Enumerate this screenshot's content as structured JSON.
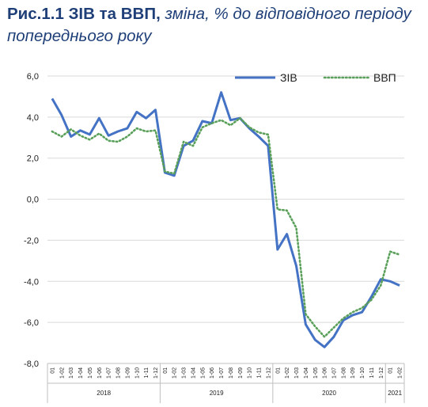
{
  "title": {
    "bold": "Рис.1.1 ЗІВ та ВВП,",
    "rest": " зміна, % до відповідного періоду попереднього року"
  },
  "colors": {
    "ziv": "#4472c4",
    "vvp": "#5aa05a",
    "grid": "#d9d9d9"
  },
  "chart_data": {
    "type": "line",
    "title": "Рис.1.1 ЗІВ та ВВП, зміна, % до відповідного періоду попереднього року",
    "ylim": [
      -8,
      6
    ],
    "yticks": [
      "6,0",
      "4,0",
      "2,0",
      "0,0",
      "-2,0",
      "-4,0",
      "-6,0",
      "-8,0"
    ],
    "grid": "horizontal",
    "legend": "top-right",
    "x": [
      "01",
      "1-02",
      "1-03",
      "1-04",
      "1-05",
      "1-06",
      "1-07",
      "1-08",
      "1-09",
      "1-10",
      "1-11",
      "1-12",
      "01",
      "1-02",
      "1-03",
      "1-04",
      "1-05",
      "1-06",
      "1-07",
      "1-08",
      "1-09",
      "1-10",
      "1-11",
      "1-12",
      "01",
      "1-02",
      "1-03",
      "1-04",
      "1-05",
      "1-06",
      "1-07",
      "1-08",
      "1-09",
      "1-10",
      "1-11",
      "1-12",
      "01",
      "1-02"
    ],
    "years": [
      {
        "label": "2018",
        "start": 0,
        "end": 11
      },
      {
        "label": "2019",
        "start": 12,
        "end": 23
      },
      {
        "label": "2020",
        "start": 24,
        "end": 35
      },
      {
        "label": "2021",
        "start": 36,
        "end": 37
      }
    ],
    "series": [
      {
        "name": "ЗІВ",
        "style": "solid",
        "values": [
          4.9,
          4.1,
          3.05,
          3.35,
          3.15,
          3.95,
          3.1,
          3.3,
          3.45,
          4.25,
          3.95,
          4.35,
          1.3,
          1.15,
          2.6,
          2.85,
          3.8,
          3.7,
          5.2,
          3.85,
          3.95,
          3.45,
          3.05,
          2.6,
          -2.45,
          -1.7,
          -3.25,
          -6.1,
          -6.85,
          -7.2,
          -6.7,
          -5.9,
          -5.65,
          -5.5,
          -4.75,
          -3.9,
          -4.0,
          -4.2
        ]
      },
      {
        "name": "ВВП",
        "style": "dotted",
        "values": [
          3.3,
          3.05,
          3.4,
          3.1,
          2.9,
          3.2,
          2.85,
          2.8,
          3.05,
          3.45,
          3.3,
          3.35,
          1.35,
          1.25,
          2.8,
          2.6,
          3.5,
          3.7,
          3.85,
          3.6,
          3.95,
          3.5,
          3.25,
          3.15,
          -0.5,
          -0.55,
          -1.4,
          -5.6,
          -6.2,
          -6.7,
          -6.25,
          -5.8,
          -5.5,
          -5.3,
          -4.9,
          -4.2,
          -2.55,
          -2.7
        ]
      }
    ]
  }
}
